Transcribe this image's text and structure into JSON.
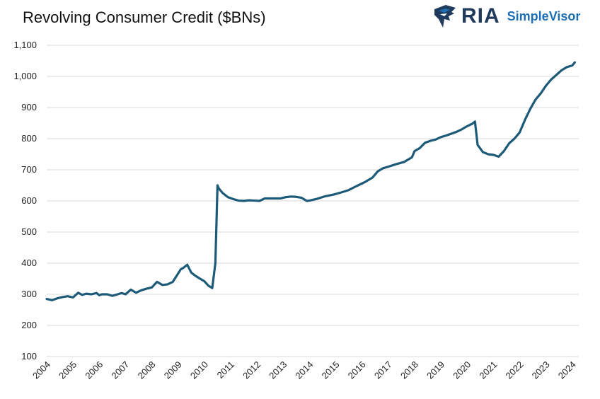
{
  "header": {
    "logo_main": "RIA",
    "logo_sub": "SimpleVisor",
    "logo_icon": "eagle-head-icon"
  },
  "colors": {
    "line": "#1c5a78",
    "grid": "#d9d9d9",
    "brand_dark": "#1f3a5a",
    "brand_blue": "#1d6fb5"
  },
  "chart_data": {
    "type": "line",
    "title": "Revolving Consumer Credit ($BNs)",
    "xlabel": "",
    "ylabel": "",
    "ylim": [
      100,
      1100
    ],
    "xlim": [
      2004,
      2024.25
    ],
    "grid": true,
    "y_ticks": [
      100,
      200,
      300,
      400,
      500,
      600,
      700,
      800,
      900,
      1000,
      1100
    ],
    "y_tick_labels": [
      "100",
      "200",
      "300",
      "400",
      "500",
      "600",
      "700",
      "800",
      "900",
      "1,000",
      "1,100"
    ],
    "x_ticks": [
      2004,
      2005,
      2006,
      2007,
      2008,
      2009,
      2010,
      2011,
      2012,
      2013,
      2014,
      2015,
      2016,
      2017,
      2018,
      2019,
      2020,
      2021,
      2022,
      2023,
      2024
    ],
    "x_tick_labels": [
      "2004",
      "2005",
      "2006",
      "2007",
      "2008",
      "2009",
      "2010",
      "2011",
      "2012",
      "2013",
      "2014",
      "2015",
      "2016",
      "2017",
      "2018",
      "2019",
      "2020",
      "2021",
      "2022",
      "2023",
      "2024"
    ],
    "series": [
      {
        "x": [
          2004.0,
          2004.2,
          2004.4,
          2004.6,
          2004.8,
          2005.0,
          2005.2,
          2005.35,
          2005.5,
          2005.7,
          2005.9,
          2006.0,
          2006.1,
          2006.3,
          2006.5,
          2006.7,
          2006.85,
          2007.0,
          2007.2,
          2007.4,
          2007.6,
          2007.8,
          2008.0,
          2008.2,
          2008.4,
          2008.6,
          2008.8,
          2008.95,
          2009.1,
          2009.2,
          2009.35,
          2009.5,
          2009.65,
          2009.8,
          2010.0,
          2010.15,
          2010.3,
          2010.42,
          2010.5,
          2010.55,
          2010.7,
          2010.9,
          2011.1,
          2011.3,
          2011.5,
          2011.7,
          2011.9,
          2012.1,
          2012.3,
          2012.5,
          2012.7,
          2012.9,
          2013.1,
          2013.3,
          2013.5,
          2013.7,
          2013.9,
          2014.0,
          2014.3,
          2014.6,
          2014.9,
          2015.2,
          2015.5,
          2015.8,
          2016.1,
          2016.4,
          2016.6,
          2016.8,
          2017.0,
          2017.3,
          2017.6,
          2017.9,
          2018.0,
          2018.2,
          2018.4,
          2018.6,
          2018.8,
          2019.0,
          2019.2,
          2019.4,
          2019.6,
          2019.8,
          2020.0,
          2020.2,
          2020.3,
          2020.4,
          2020.6,
          2020.8,
          2021.0,
          2021.2,
          2021.4,
          2021.6,
          2021.8,
          2022.0,
          2022.2,
          2022.4,
          2022.6,
          2022.8,
          2023.0,
          2023.2,
          2023.4,
          2023.6,
          2023.8,
          2024.0,
          2024.1
        ],
        "values": [
          285,
          281,
          287,
          291,
          294,
          290,
          305,
          298,
          302,
          300,
          304,
          297,
          300,
          300,
          295,
          300,
          304,
          300,
          315,
          305,
          313,
          318,
          322,
          340,
          330,
          332,
          340,
          360,
          380,
          385,
          395,
          370,
          360,
          352,
          342,
          328,
          320,
          400,
          650,
          640,
          625,
          612,
          606,
          601,
          600,
          602,
          601,
          600,
          608,
          608,
          608,
          608,
          612,
          614,
          613,
          610,
          600,
          601,
          607,
          615,
          620,
          627,
          635,
          648,
          660,
          675,
          695,
          705,
          710,
          718,
          725,
          740,
          760,
          770,
          787,
          793,
          797,
          805,
          810,
          816,
          822,
          830,
          840,
          848,
          855,
          780,
          757,
          750,
          748,
          742,
          760,
          785,
          800,
          820,
          860,
          895,
          925,
          945,
          970,
          990,
          1005,
          1020,
          1030,
          1035,
          1045
        ]
      }
    ]
  }
}
